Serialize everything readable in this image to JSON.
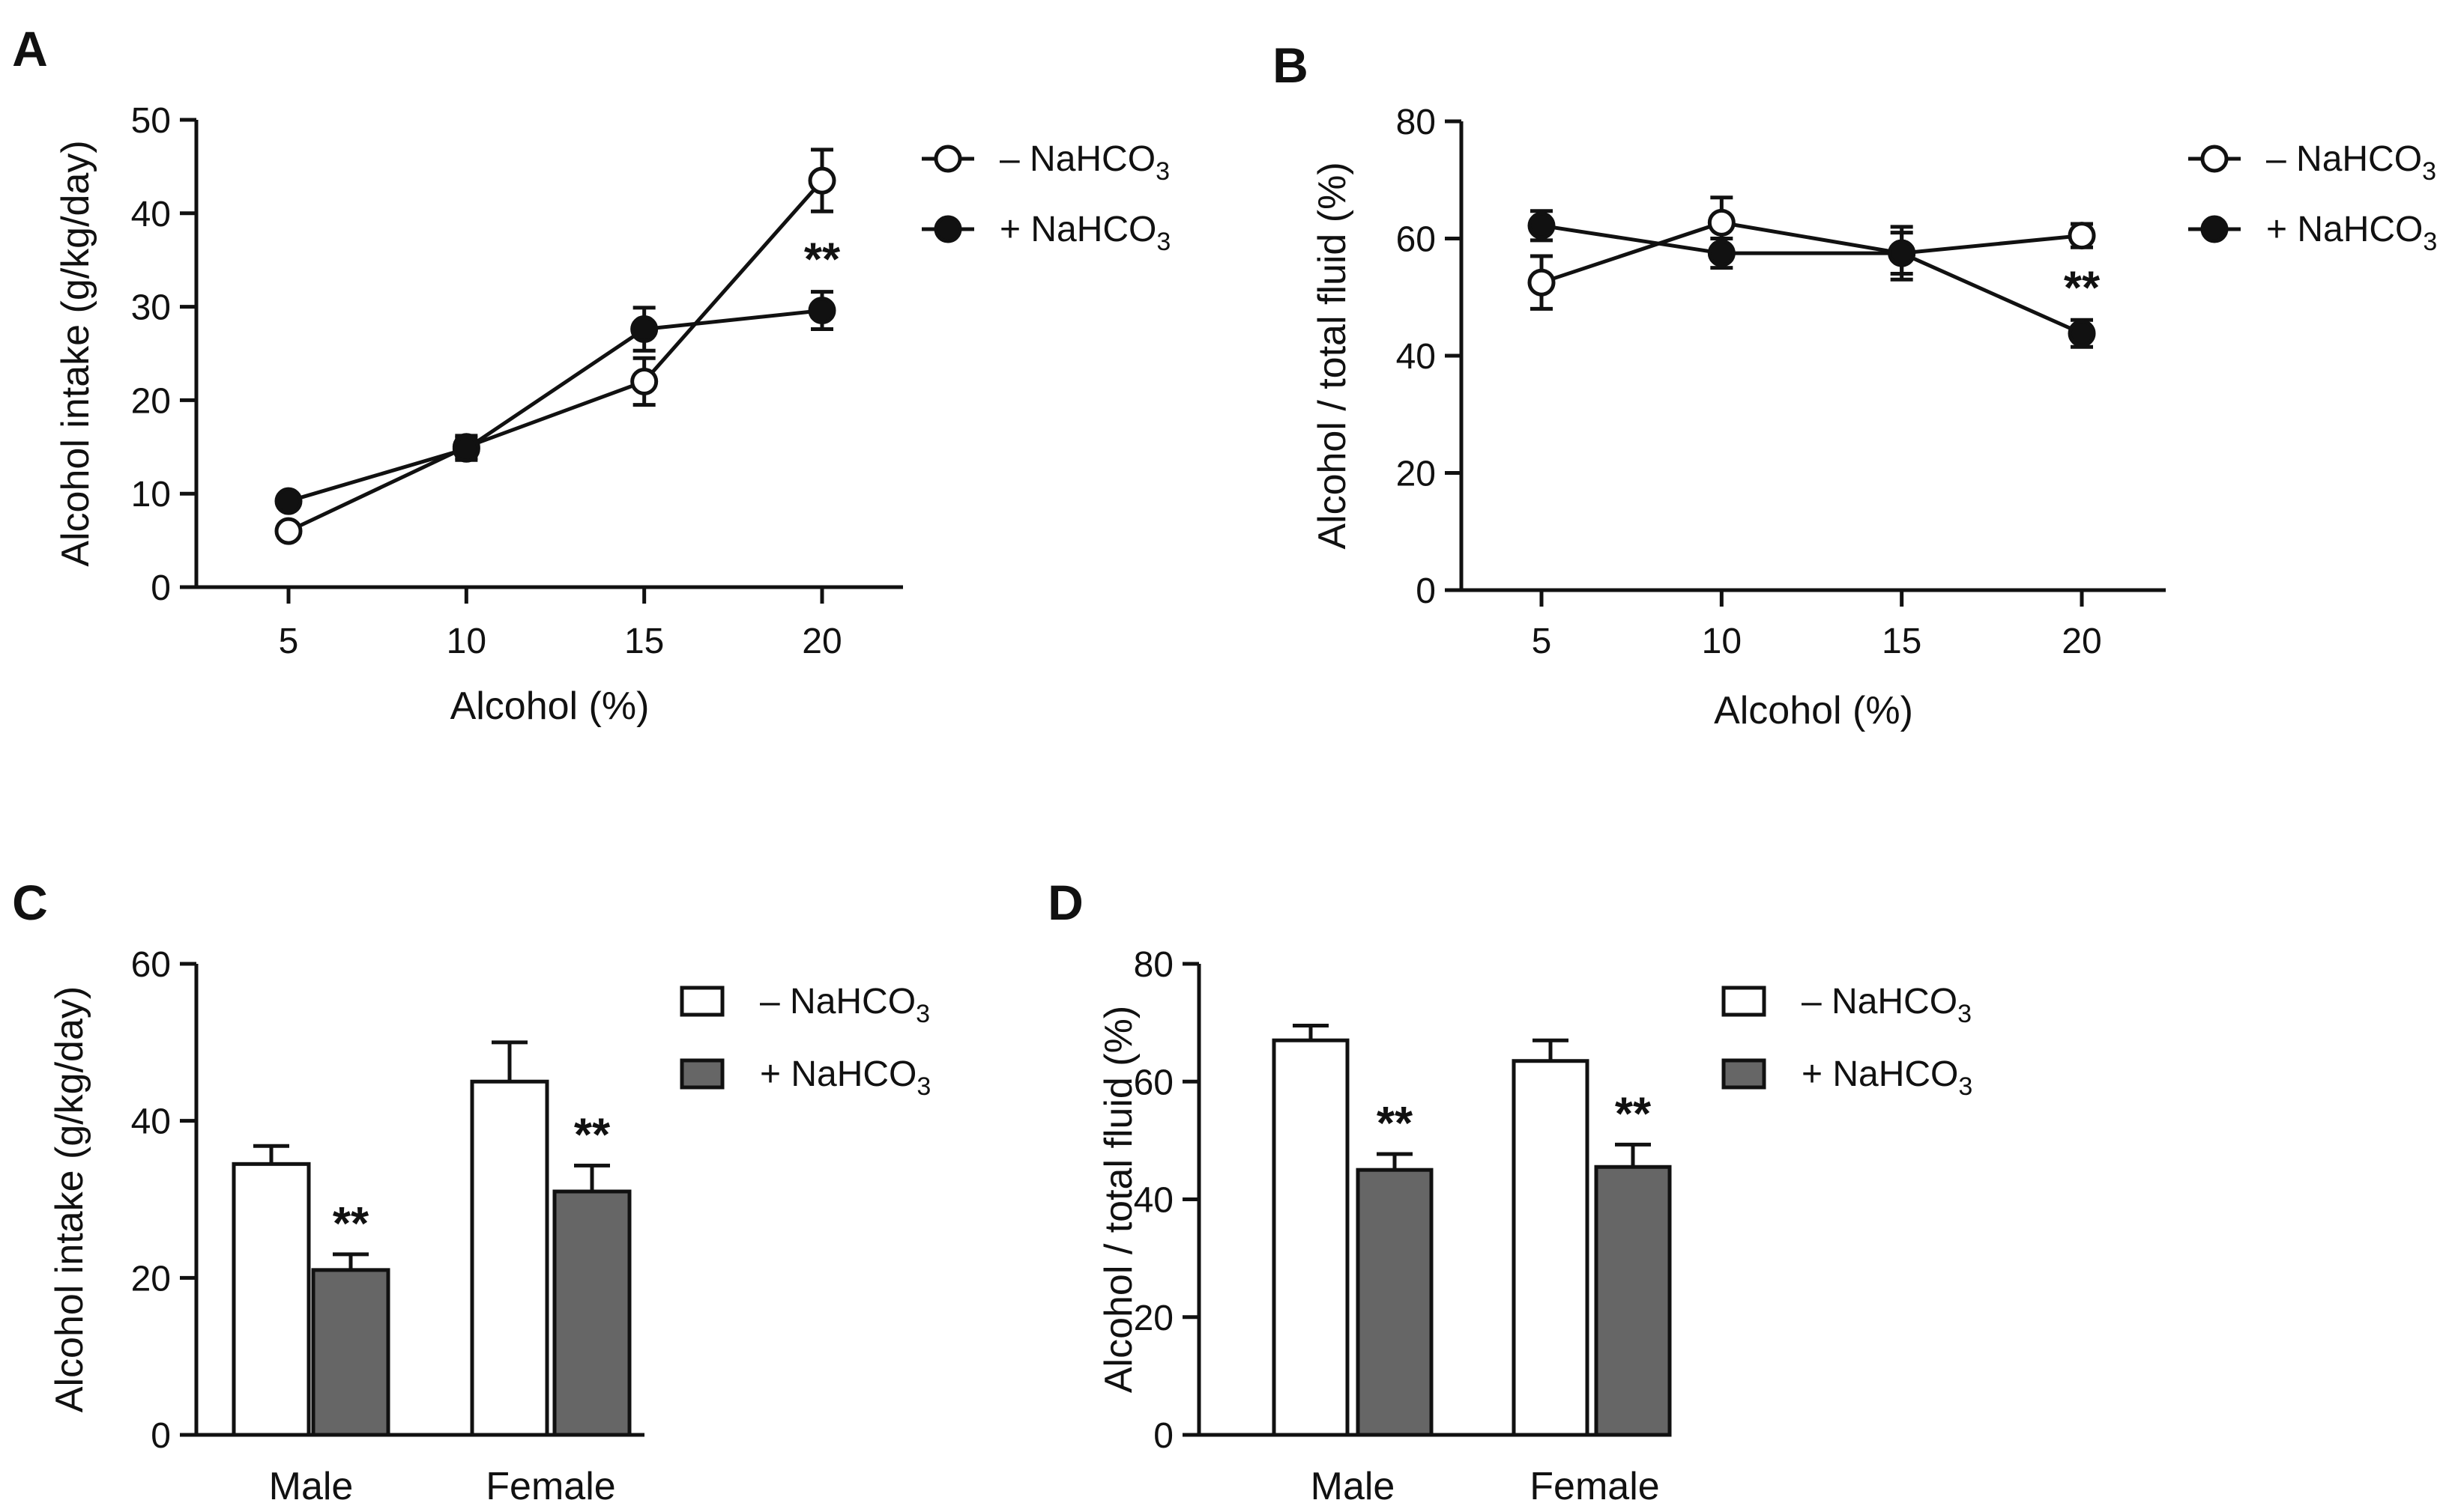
{
  "colors": {
    "ink": "#111111",
    "open_fill": "#ffffff",
    "filled_point": "#111111",
    "bar_treated": "#666666"
  },
  "chart_data": [
    {
      "panel": "A",
      "type": "line",
      "xlabel": "Alcohol (%)",
      "ylabel": "Alcohol intake (g/kg/day)",
      "x": [
        5,
        10,
        15,
        20
      ],
      "xticks": [
        "5",
        "10",
        "15",
        "20"
      ],
      "ylim": [
        0,
        50
      ],
      "yticks": [
        "0",
        "10",
        "20",
        "30",
        "40",
        "50"
      ],
      "series": [
        {
          "name": "– NaHCO",
          "sub": "3",
          "marker": "open",
          "values": [
            6,
            15,
            22,
            43.5
          ],
          "errors": [
            0.7,
            1.2,
            2.5,
            3.3
          ]
        },
        {
          "name": "+ NaHCO",
          "sub": "3",
          "marker": "filled",
          "values": [
            9.2,
            14.8,
            27.6,
            29.6
          ],
          "errors": [
            0.6,
            1.2,
            2.3,
            2.0
          ]
        }
      ],
      "annotations": [
        {
          "text": "**",
          "x": 20
        }
      ]
    },
    {
      "panel": "B",
      "type": "line",
      "xlabel": "Alcohol (%)",
      "ylabel": "Alcohol / total fluid (%)",
      "x": [
        5,
        10,
        15,
        20
      ],
      "xticks": [
        "5",
        "10",
        "15",
        "20"
      ],
      "ylim": [
        0,
        80
      ],
      "yticks": [
        "0",
        "20",
        "40",
        "60",
        "80"
      ],
      "series": [
        {
          "name": "– NaHCO",
          "sub": "3",
          "marker": "open",
          "values": [
            52.5,
            62.7,
            57.5,
            60.5
          ],
          "errors": [
            4.5,
            4.3,
            4.5,
            2.0
          ]
        },
        {
          "name": "+ NaHCO",
          "sub": "3",
          "marker": "filled",
          "values": [
            62.2,
            57.5,
            57.5,
            43.8
          ],
          "errors": [
            2.5,
            2.5,
            3.5,
            2.3
          ]
        }
      ],
      "annotations": [
        {
          "text": "**",
          "x": 20
        }
      ]
    },
    {
      "panel": "C",
      "type": "bar",
      "ylabel": "Alcohol intake (g/kg/day)",
      "categories": [
        "Male",
        "Female"
      ],
      "ylim": [
        0,
        60
      ],
      "yticks": [
        "0",
        "20",
        "40",
        "60"
      ],
      "series": [
        {
          "name": "– NaHCO",
          "sub": "3",
          "style": "open",
          "values": [
            34.5,
            45
          ],
          "errors": [
            2.3,
            5.0
          ]
        },
        {
          "name": "+ NaHCO",
          "sub": "3",
          "style": "filled",
          "values": [
            21,
            31
          ],
          "errors": [
            2.0,
            3.3
          ]
        }
      ],
      "annotations": [
        {
          "text": "**",
          "category": "Male"
        },
        {
          "text": "**",
          "category": "Female"
        }
      ]
    },
    {
      "panel": "D",
      "type": "bar",
      "ylabel": "Alcohol / total fluid (%)",
      "categories": [
        "Male",
        "Female"
      ],
      "ylim": [
        0,
        80
      ],
      "yticks": [
        "0",
        "20",
        "40",
        "60",
        "80"
      ],
      "series": [
        {
          "name": "– NaHCO",
          "sub": "3",
          "style": "open",
          "values": [
            67,
            63.5
          ],
          "errors": [
            2.5,
            3.5
          ]
        },
        {
          "name": "+ NaHCO",
          "sub": "3",
          "style": "filled",
          "values": [
            45,
            45.5
          ],
          "errors": [
            2.7,
            3.8
          ]
        }
      ],
      "annotations": [
        {
          "text": "**",
          "category": "Male"
        },
        {
          "text": "**",
          "category": "Female"
        }
      ]
    }
  ]
}
